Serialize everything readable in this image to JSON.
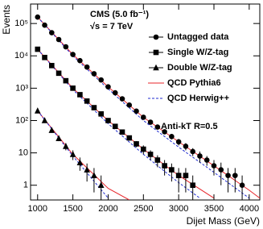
{
  "chart_data": {
    "type": "scatter",
    "log_y": true,
    "ylabel": "Events",
    "xlabel": "Dijet Mass (GeV)",
    "annotations": [
      "CMS (5.0 fb⁻¹)",
      "√s = 7 TeV",
      "Anti-kT R=0.5"
    ],
    "xlim": [
      900,
      4150
    ],
    "ylim": [
      0.35,
      400000
    ],
    "xticks": [
      1000,
      1500,
      2000,
      2500,
      3000,
      3500,
      4000
    ],
    "yticks": [
      1,
      10,
      {
        "value": 100,
        "label": "10²"
      },
      {
        "value": 1000,
        "label": "10³"
      },
      {
        "value": 10000,
        "label": "10⁴"
      },
      {
        "value": 100000,
        "label": "10⁵"
      }
    ],
    "series": [
      {
        "name": "Untagged data",
        "color": "#000000",
        "marker": "circle",
        "x": [
          1000,
          1100,
          1200,
          1300,
          1400,
          1500,
          1600,
          1700,
          1800,
          1900,
          2000,
          2100,
          2200,
          2300,
          2400,
          2500,
          2600,
          2700,
          2800,
          2900,
          3000,
          3100,
          3200,
          3300,
          3400,
          3500,
          3600,
          3700,
          3800,
          3900
        ],
        "values": [
          158000,
          89000,
          52000,
          32000,
          19000,
          11000,
          7100,
          4500,
          2800,
          1800,
          1100,
          720,
          470,
          300,
          195,
          126,
          89,
          63,
          45,
          32,
          22,
          16,
          11,
          8,
          6,
          4,
          3,
          2,
          2,
          1
        ],
        "errors": [
          400,
          300,
          230,
          180,
          140,
          105,
          84,
          67,
          53,
          42,
          33,
          27,
          22,
          17,
          14,
          11,
          9,
          8,
          7,
          6,
          5,
          4,
          3,
          3,
          2,
          2,
          2,
          1.4,
          1.4,
          1
        ]
      },
      {
        "name": "Single W/Z-tag",
        "color": "#000000",
        "marker": "square",
        "x": [
          1000,
          1100,
          1200,
          1300,
          1400,
          1500,
          1600,
          1700,
          1800,
          1900,
          2000,
          2100,
          2200,
          2300,
          2400,
          2500,
          2600,
          2700,
          2800,
          2900,
          3000,
          3100,
          3200
        ],
        "values": [
          16000,
          8900,
          5000,
          2900,
          1700,
          1000,
          630,
          400,
          250,
          160,
          100,
          66,
          44,
          29,
          19,
          13,
          9,
          6,
          4,
          3,
          2,
          2,
          1
        ],
        "errors": [
          126,
          94,
          71,
          54,
          41,
          32,
          25,
          20,
          16,
          13,
          10,
          8,
          7,
          5,
          4,
          4,
          3,
          2.4,
          2,
          1.7,
          1.4,
          1.4,
          1
        ]
      },
      {
        "name": "Double W/Z-tag",
        "color": "#000000",
        "marker": "triangle",
        "x": [
          1000,
          1100,
          1200,
          1300,
          1400,
          1500,
          1600,
          1700,
          1800,
          1900
        ],
        "values": [
          200,
          100,
          50,
          28,
          16,
          9,
          5,
          3,
          2,
          1
        ],
        "errors": [
          14,
          10,
          7,
          5,
          4,
          3,
          2.2,
          1.7,
          1.4,
          1
        ]
      }
    ],
    "curves": [
      {
        "name": "QCD Pythia6",
        "color": "#e8262b",
        "dashed": false,
        "pieces": [
          {
            "x": [
              1000,
              1500,
              2000,
              2500,
              3000,
              3500,
              4000,
              4150
            ],
            "values": [
              158000,
              11000,
              1100,
              126,
              22,
              4,
              0.7,
              0.4
            ]
          },
          {
            "x": [
              1000,
              1500,
              2000,
              2500,
              3000,
              3500
            ],
            "values": [
              16000,
              1000,
              100,
              13,
              2,
              0.4
            ]
          },
          {
            "x": [
              1000,
              1500,
              2000,
              2300
            ],
            "values": [
              200,
              9,
              0.8,
              0.35
            ]
          }
        ]
      },
      {
        "name": "QCD Herwig++",
        "color": "#1f2bd0",
        "dashed": true,
        "pieces": [
          {
            "x": [
              1000,
              1500,
              2000,
              2500,
              3000,
              3500,
              4000
            ],
            "values": [
              158000,
              10000,
              950,
              100,
              15,
              2.5,
              0.4
            ]
          },
          {
            "x": [
              1000,
              1500,
              2000,
              2500,
              3000,
              3300
            ],
            "values": [
              16000,
              900,
              80,
              9,
              1.2,
              0.4
            ]
          },
          {
            "x": [
              1000,
              1500,
              2000
            ],
            "values": [
              200,
              8,
              0.4
            ]
          }
        ]
      }
    ]
  }
}
